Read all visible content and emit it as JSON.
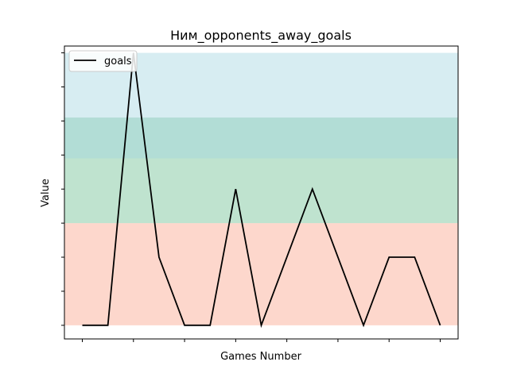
{
  "chart_data": {
    "type": "line",
    "title": "Ним_opponents_away_goals",
    "xlabel": "Games Number",
    "ylabel": "Value",
    "x": [
      0,
      1,
      2,
      3,
      4,
      5,
      6,
      7,
      8,
      9,
      10,
      11,
      12,
      13,
      14
    ],
    "series": [
      {
        "name": "goals",
        "color": "#000000",
        "values": [
          0,
          0,
          4,
          1,
          0,
          0,
          2,
          0,
          1,
          2,
          1,
          0,
          1,
          1,
          0
        ]
      }
    ],
    "xlim": [
      -0.7,
      14.7
    ],
    "ylim": [
      -0.2,
      4.1
    ],
    "x_ticks": [
      0,
      2,
      4,
      6,
      8,
      10,
      12,
      14
    ],
    "y_ticks": [
      0,
      0.5,
      1,
      1.5,
      2,
      2.5,
      3,
      3.5,
      4
    ],
    "tick_labels_shown": false,
    "bands": [
      {
        "from": 0,
        "to": 1.5,
        "color": "#fa8c6c",
        "opacity": 0.35
      },
      {
        "from": 1.5,
        "to": 3.05,
        "color": "#67bd8c",
        "opacity": 0.42
      },
      {
        "from": 2.45,
        "to": 4,
        "color": "#9fd5e1",
        "opacity": 0.42
      }
    ],
    "legend": {
      "position": "top-left"
    },
    "grid": false
  }
}
